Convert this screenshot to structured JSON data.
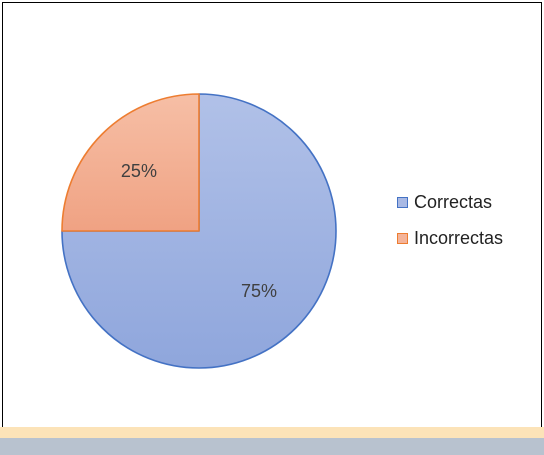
{
  "chart_data": {
    "type": "pie",
    "categories": [
      "Correctas",
      "Incorrectas"
    ],
    "values": [
      75,
      25
    ],
    "data_labels": [
      "75%",
      "25%"
    ],
    "colors": {
      "Correctas": {
        "fill": "#a9b9e4",
        "stroke": "#4472c4"
      },
      "Incorrectas": {
        "fill": "#f4b49a",
        "stroke": "#ed7d31"
      }
    },
    "legend_position": "right"
  }
}
